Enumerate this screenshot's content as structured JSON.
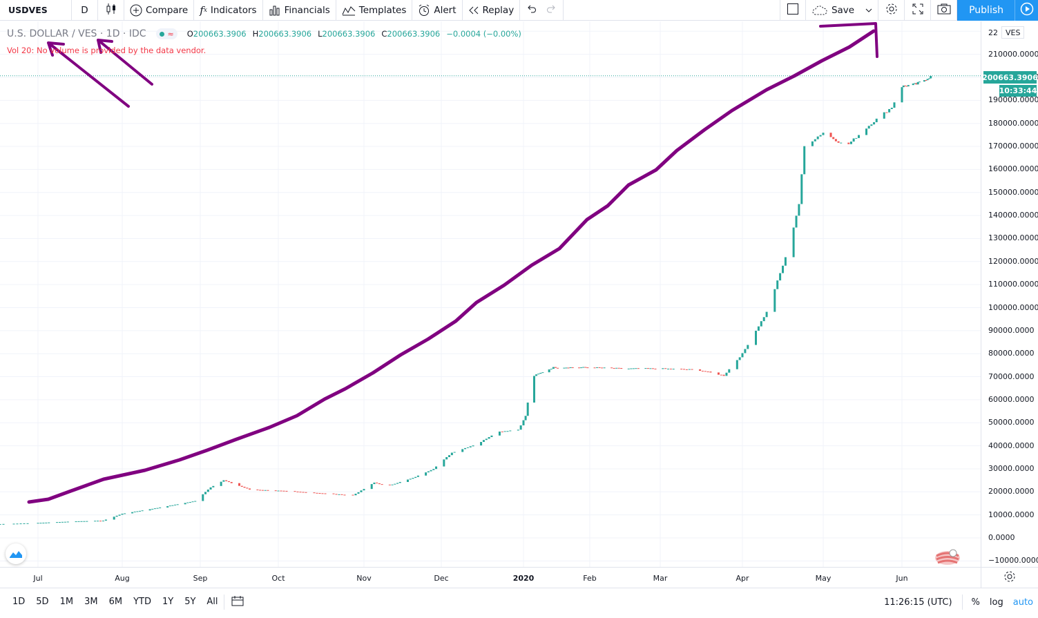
{
  "toolbar": {
    "symbol": "USDVES",
    "interval": "D",
    "compare": "Compare",
    "indicators": "Indicators",
    "financials": "Financials",
    "templates": "Templates",
    "alert": "Alert",
    "replay": "Replay",
    "save": "Save",
    "publish": "Publish"
  },
  "legend": {
    "title": "U.S. DOLLAR / VES · 1D · IDC",
    "o_label": "O",
    "o_value": "200663.3906",
    "h_label": "H",
    "h_value": "200663.3906",
    "l_label": "L",
    "l_value": "200663.3906",
    "c_label": "C",
    "c_value": "200663.3906",
    "change": "−0.0004 (−0.00%)",
    "volume_note": "Vol 20: No volume is provided by the data vendor."
  },
  "price_axis": {
    "ticks": [
      "210000.0000",
      "200000.0000",
      "190000.0000",
      "180000.0000",
      "170000.0000",
      "160000.0000",
      "150000.0000",
      "140000.0000",
      "130000.0000",
      "120000.0000",
      "110000.0000",
      "100000.0000",
      "90000.0000",
      "80000.0000",
      "70000.0000",
      "60000.0000",
      "50000.0000",
      "40000.0000",
      "30000.0000",
      "20000.0000",
      "10000.0000",
      "0.0000",
      "−10000.0000"
    ],
    "top_partial": "22",
    "currency_tag": "VES",
    "last_price": "200663.3906",
    "countdown": "10:33:44"
  },
  "time_axis": {
    "labels": [
      "Jul",
      "Aug",
      "Sep",
      "Oct",
      "Nov",
      "Dec",
      "2020",
      "Feb",
      "Mar",
      "Apr",
      "May",
      "Jun"
    ]
  },
  "bottom_bar": {
    "ranges": [
      "1D",
      "5D",
      "1M",
      "3M",
      "6M",
      "YTD",
      "1Y",
      "5Y",
      "All"
    ],
    "clock": "11:26:15 (UTC)",
    "percent": "%",
    "log": "log",
    "auto": "auto"
  },
  "chart_data": {
    "type": "candlestick",
    "symbol": "USDVES",
    "ylim": [
      -14000,
      222000
    ],
    "up_color": "#26a69a",
    "down_color": "#ef5350",
    "annotation_color": "#800080",
    "series": [
      {
        "x": "2019-06-20",
        "y": 6000
      },
      {
        "x": "2019-07-01",
        "y": 6500
      },
      {
        "x": "2019-07-15",
        "y": 7200
      },
      {
        "x": "2019-07-25",
        "y": 7500
      },
      {
        "x": "2019-08-01",
        "y": 10500
      },
      {
        "x": "2019-08-15",
        "y": 13000
      },
      {
        "x": "2019-08-30",
        "y": 16000
      },
      {
        "x": "2019-09-05",
        "y": 22000
      },
      {
        "x": "2019-09-10",
        "y": 25000
      },
      {
        "x": "2019-09-20",
        "y": 21000
      },
      {
        "x": "2019-10-01",
        "y": 20500
      },
      {
        "x": "2019-10-15",
        "y": 19500
      },
      {
        "x": "2019-10-28",
        "y": 18500
      },
      {
        "x": "2019-11-05",
        "y": 24000
      },
      {
        "x": "2019-11-10",
        "y": 22500
      },
      {
        "x": "2019-11-20",
        "y": 26000
      },
      {
        "x": "2019-11-28",
        "y": 30000
      },
      {
        "x": "2019-12-05",
        "y": 37000
      },
      {
        "x": "2019-12-15",
        "y": 41000
      },
      {
        "x": "2019-12-22",
        "y": 46000
      },
      {
        "x": "2019-12-30",
        "y": 47000
      },
      {
        "x": "2020-01-02",
        "y": 53000
      },
      {
        "x": "2020-01-05",
        "y": 70000
      },
      {
        "x": "2020-01-15",
        "y": 74000
      },
      {
        "x": "2020-02-01",
        "y": 74000
      },
      {
        "x": "2020-02-15",
        "y": 73500
      },
      {
        "x": "2020-03-01",
        "y": 73500
      },
      {
        "x": "2020-03-15",
        "y": 73000
      },
      {
        "x": "2020-03-25",
        "y": 70500
      },
      {
        "x": "2020-04-01",
        "y": 80000
      },
      {
        "x": "2020-04-10",
        "y": 98000
      },
      {
        "x": "2020-04-18",
        "y": 125000
      },
      {
        "x": "2020-04-22",
        "y": 145000
      },
      {
        "x": "2020-04-24",
        "y": 170000
      },
      {
        "x": "2020-05-01",
        "y": 176000
      },
      {
        "x": "2020-05-10",
        "y": 170000
      },
      {
        "x": "2020-05-20",
        "y": 180000
      },
      {
        "x": "2020-05-28",
        "y": 187000
      },
      {
        "x": "2020-06-01",
        "y": 196000
      },
      {
        "x": "2020-06-10",
        "y": 197000
      },
      {
        "x": "2020-06-20",
        "y": 200663.3906
      }
    ]
  }
}
